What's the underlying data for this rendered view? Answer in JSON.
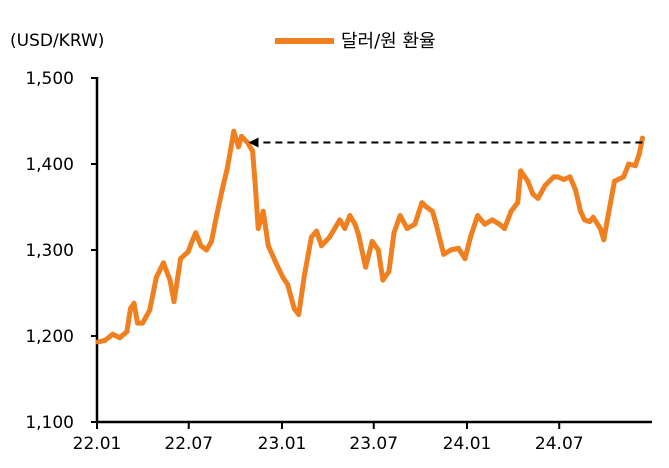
{
  "chart_data": {
    "type": "line",
    "unit_label": "(USD/KRW)",
    "ylim": [
      1100,
      1500
    ],
    "yticks": [
      "1,100",
      "1,200",
      "1,300",
      "1,400",
      "1,500"
    ],
    "ytick_values": [
      1100,
      1200,
      1300,
      1400,
      1500
    ],
    "xlim": [
      "2022-01-01",
      "2024-12-31"
    ],
    "xticks": [
      "22.01",
      "22.07",
      "23.01",
      "23.07",
      "24.01",
      "24.07"
    ],
    "xtick_dates": [
      "2022-01-01",
      "2022-07-01",
      "2023-01-01",
      "2023-07-01",
      "2024-01-01",
      "2024-07-01"
    ],
    "grid": false,
    "legend_position": "top-center",
    "series": [
      {
        "name": "달러/원 환율",
        "color": "#F0801F",
        "points": [
          [
            "2022-01-03",
            1193
          ],
          [
            "2022-01-17",
            1195
          ],
          [
            "2022-02-01",
            1202
          ],
          [
            "2022-02-15",
            1198
          ],
          [
            "2022-03-01",
            1205
          ],
          [
            "2022-03-08",
            1232
          ],
          [
            "2022-03-15",
            1238
          ],
          [
            "2022-03-22",
            1215
          ],
          [
            "2022-04-01",
            1215
          ],
          [
            "2022-04-15",
            1230
          ],
          [
            "2022-04-28",
            1268
          ],
          [
            "2022-05-12",
            1285
          ],
          [
            "2022-05-25",
            1265
          ],
          [
            "2022-06-02",
            1240
          ],
          [
            "2022-06-15",
            1290
          ],
          [
            "2022-06-30",
            1298
          ],
          [
            "2022-07-06",
            1308
          ],
          [
            "2022-07-15",
            1320
          ],
          [
            "2022-07-25",
            1305
          ],
          [
            "2022-08-05",
            1300
          ],
          [
            "2022-08-15",
            1310
          ],
          [
            "2022-08-25",
            1340
          ],
          [
            "2022-09-05",
            1370
          ],
          [
            "2022-09-15",
            1395
          ],
          [
            "2022-09-28",
            1438
          ],
          [
            "2022-10-07",
            1420
          ],
          [
            "2022-10-13",
            1432
          ],
          [
            "2022-10-25",
            1425
          ],
          [
            "2022-11-04",
            1415
          ],
          [
            "2022-11-10",
            1370
          ],
          [
            "2022-11-15",
            1325
          ],
          [
            "2022-11-25",
            1345
          ],
          [
            "2022-12-05",
            1305
          ],
          [
            "2022-12-20",
            1285
          ],
          [
            "2023-01-03",
            1268
          ],
          [
            "2023-01-12",
            1260
          ],
          [
            "2023-01-25",
            1232
          ],
          [
            "2023-02-03",
            1225
          ],
          [
            "2023-02-14",
            1270
          ],
          [
            "2023-02-28",
            1315
          ],
          [
            "2023-03-10",
            1322
          ],
          [
            "2023-03-20",
            1305
          ],
          [
            "2023-04-05",
            1315
          ],
          [
            "2023-04-25",
            1335
          ],
          [
            "2023-05-05",
            1325
          ],
          [
            "2023-05-15",
            1340
          ],
          [
            "2023-05-25",
            1330
          ],
          [
            "2023-06-01",
            1318
          ],
          [
            "2023-06-15",
            1280
          ],
          [
            "2023-06-28",
            1310
          ],
          [
            "2023-07-10",
            1300
          ],
          [
            "2023-07-19",
            1265
          ],
          [
            "2023-07-31",
            1275
          ],
          [
            "2023-08-10",
            1320
          ],
          [
            "2023-08-22",
            1340
          ],
          [
            "2023-09-05",
            1325
          ],
          [
            "2023-09-20",
            1330
          ],
          [
            "2023-10-04",
            1355
          ],
          [
            "2023-10-13",
            1350
          ],
          [
            "2023-10-25",
            1345
          ],
          [
            "2023-11-01",
            1330
          ],
          [
            "2023-11-16",
            1295
          ],
          [
            "2023-11-30",
            1300
          ],
          [
            "2023-12-15",
            1302
          ],
          [
            "2023-12-28",
            1290
          ],
          [
            "2024-01-08",
            1315
          ],
          [
            "2024-01-22",
            1340
          ],
          [
            "2024-02-05",
            1330
          ],
          [
            "2024-02-20",
            1335
          ],
          [
            "2024-03-05",
            1330
          ],
          [
            "2024-03-15",
            1325
          ],
          [
            "2024-03-28",
            1345
          ],
          [
            "2024-04-10",
            1355
          ],
          [
            "2024-04-16",
            1392
          ],
          [
            "2024-04-30",
            1380
          ],
          [
            "2024-05-10",
            1365
          ],
          [
            "2024-05-20",
            1360
          ],
          [
            "2024-06-03",
            1375
          ],
          [
            "2024-06-20",
            1385
          ],
          [
            "2024-06-28",
            1385
          ],
          [
            "2024-07-10",
            1382
          ],
          [
            "2024-07-22",
            1385
          ],
          [
            "2024-08-02",
            1370
          ],
          [
            "2024-08-12",
            1345
          ],
          [
            "2024-08-20",
            1335
          ],
          [
            "2024-08-30",
            1333
          ],
          [
            "2024-09-06",
            1338
          ],
          [
            "2024-09-20",
            1325
          ],
          [
            "2024-09-27",
            1312
          ],
          [
            "2024-10-07",
            1345
          ],
          [
            "2024-10-18",
            1380
          ],
          [
            "2024-11-05",
            1385
          ],
          [
            "2024-11-15",
            1400
          ],
          [
            "2024-11-28",
            1398
          ],
          [
            "2024-12-06",
            1412
          ],
          [
            "2024-12-12",
            1430
          ]
        ]
      }
    ],
    "annotation": {
      "type": "dashed-arrow",
      "y": 1425,
      "from_date": "2024-12-12",
      "to_date": "2022-10-25"
    }
  }
}
